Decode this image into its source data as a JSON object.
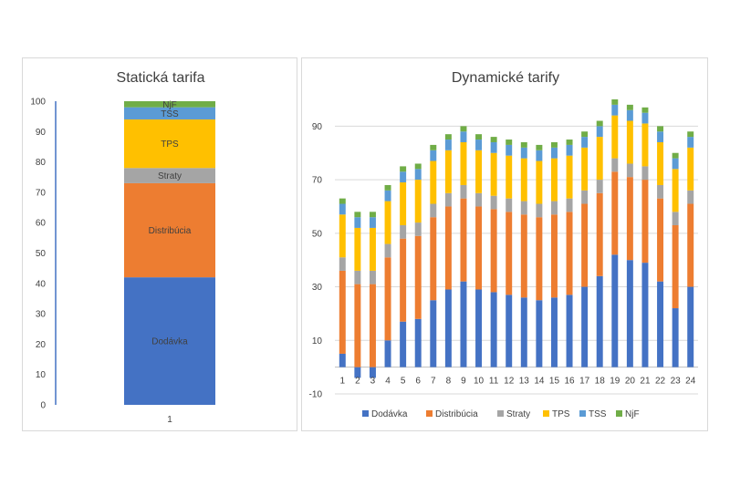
{
  "chart_data": [
    {
      "type": "bar",
      "stacked": true,
      "title": "Statická tarifa",
      "categories": [
        "1"
      ],
      "ylim": [
        0,
        100
      ],
      "yticks": [
        0,
        10,
        20,
        30,
        40,
        50,
        60,
        70,
        80,
        90,
        100
      ],
      "series": [
        {
          "name": "Dodávka",
          "label": "Dodávka",
          "color": "#4472c4",
          "values": [
            42
          ]
        },
        {
          "name": "Distribúcia",
          "label": "Distribúcia",
          "color": "#ed7d31",
          "values": [
            31
          ]
        },
        {
          "name": "Straty",
          "label": "Straty",
          "color": "#a5a5a5",
          "values": [
            5
          ]
        },
        {
          "name": "TPS",
          "label": "TPS",
          "color": "#ffc000",
          "values": [
            16
          ]
        },
        {
          "name": "TSS",
          "label": "TSS",
          "color": "#5b9bd5",
          "values": [
            4
          ]
        },
        {
          "name": "NjF",
          "label": "NjF",
          "color": "#70ad47",
          "values": [
            2
          ]
        }
      ]
    },
    {
      "type": "bar",
      "stacked": true,
      "title": "Dynamické tarify",
      "categories": [
        "1",
        "2",
        "3",
        "4",
        "5",
        "6",
        "7",
        "8",
        "9",
        "10",
        "11",
        "12",
        "13",
        "14",
        "15",
        "16",
        "17",
        "18",
        "19",
        "20",
        "21",
        "22",
        "23",
        "24"
      ],
      "ylim": [
        -10,
        100
      ],
      "yticks": [
        -10,
        10,
        30,
        50,
        70,
        90
      ],
      "legend_position": "bottom",
      "series": [
        {
          "name": "Dodávka",
          "color": "#4472c4",
          "values": [
            5,
            -4,
            -4,
            10,
            17,
            18,
            25,
            29,
            32,
            29,
            28,
            27,
            26,
            25,
            26,
            27,
            30,
            34,
            42,
            40,
            39,
            32,
            22,
            30
          ]
        },
        {
          "name": "Distribúcia",
          "color": "#ed7d31",
          "values": [
            31,
            31,
            31,
            31,
            31,
            31,
            31,
            31,
            31,
            31,
            31,
            31,
            31,
            31,
            31,
            31,
            31,
            31,
            31,
            31,
            31,
            31,
            31,
            31
          ]
        },
        {
          "name": "Straty",
          "color": "#a5a5a5",
          "values": [
            5,
            5,
            5,
            5,
            5,
            5,
            5,
            5,
            5,
            5,
            5,
            5,
            5,
            5,
            5,
            5,
            5,
            5,
            5,
            5,
            5,
            5,
            5,
            5
          ]
        },
        {
          "name": "TPS",
          "color": "#ffc000",
          "values": [
            16,
            16,
            16,
            16,
            16,
            16,
            16,
            16,
            16,
            16,
            16,
            16,
            16,
            16,
            16,
            16,
            16,
            16,
            16,
            16,
            16,
            16,
            16,
            16
          ]
        },
        {
          "name": "TSS",
          "color": "#5b9bd5",
          "values": [
            4,
            4,
            4,
            4,
            4,
            4,
            4,
            4,
            4,
            4,
            4,
            4,
            4,
            4,
            4,
            4,
            4,
            4,
            4,
            4,
            4,
            4,
            4,
            4
          ]
        },
        {
          "name": "NjF",
          "color": "#70ad47",
          "values": [
            2,
            2,
            2,
            2,
            2,
            2,
            2,
            2,
            2,
            2,
            2,
            2,
            2,
            2,
            2,
            2,
            2,
            2,
            2,
            2,
            2,
            2,
            2,
            2
          ]
        }
      ]
    }
  ]
}
